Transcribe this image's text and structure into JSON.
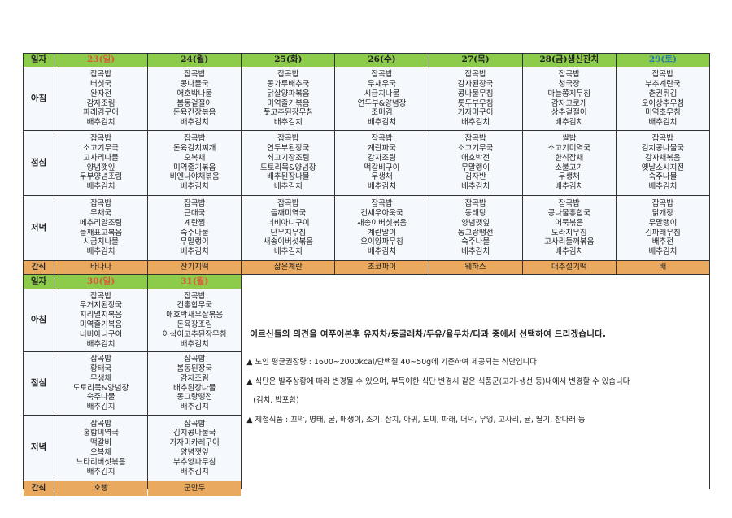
{
  "labels": {
    "date": "일자",
    "breakfast": "아침",
    "lunch": "점심",
    "dinner": "저녁",
    "snack": "간식"
  },
  "colors": {
    "header_bg": "#8dcc4a",
    "snack_bg": "#e9a95f",
    "sunday": "#d9593a",
    "saturday": "#1f7ab0",
    "weekday": "#222222"
  },
  "week1": [
    {
      "day": "23(일)",
      "color": "sunday",
      "breakfast": [
        "잡곡밥",
        "버섯국",
        "완자전",
        "감자조림",
        "파래김구이",
        "배추김치"
      ],
      "lunch": [
        "잡곡밥",
        "소고기무국",
        "고사리나물",
        "양념깻잎",
        "두부양념조림",
        "배추김치"
      ],
      "dinner": [
        "잡곡밥",
        "무채국",
        "메추리알조림",
        "들깨표고볶음",
        "시금치나물",
        "배추김치"
      ],
      "snack": "바나나"
    },
    {
      "day": "24(월)",
      "color": "weekday",
      "breakfast": [
        "잡곡밥",
        "콩나물국",
        "애호박나물",
        "봄동겉절이",
        "돈육간장볶음",
        "배추김치"
      ],
      "lunch": [
        "잡곡밥",
        "돈육김치찌개",
        "오복채",
        "미역줄기볶음",
        "비엔나야채볶음",
        "배추김치"
      ],
      "dinner": [
        "잡곡밥",
        "근대국",
        "계란찜",
        "숙주나물",
        "무말랭이",
        "배추김치"
      ],
      "snack": "잔기지떡"
    },
    {
      "day": "25(화)",
      "color": "weekday",
      "breakfast": [
        "잡곡밥",
        "콩가루배추국",
        "닭살양파볶음",
        "미역줄기볶음",
        "풋고추된장무침",
        "배추김치"
      ],
      "lunch": [
        "잡곡밥",
        "연두부된장국",
        "쇠고기장조림",
        "도토리묵&양념장",
        "배추된장나물",
        "배추김치"
      ],
      "dinner": [
        "잡곡밥",
        "들깨미역국",
        "너비아니구이",
        "단무지무침",
        "새송이버섯볶음",
        "배추김치"
      ],
      "snack": "삶은계란"
    },
    {
      "day": "26(수)",
      "color": "weekday",
      "breakfast": [
        "잡곡밥",
        "무새우국",
        "시금치나물",
        "연두부&양념장",
        "조미김",
        "배추김치"
      ],
      "lunch": [
        "잡곡밥",
        "계란파국",
        "감자조림",
        "떡갈비구이",
        "무생채",
        "배추김치"
      ],
      "dinner": [
        "잡곡밥",
        "건새우아욱국",
        "새송이버섯볶음",
        "계란말이",
        "오이양파무침",
        "배추김치"
      ],
      "snack": "초코파이"
    },
    {
      "day": "27(목)",
      "color": "weekday",
      "breakfast": [
        "잡곡밥",
        "감자된장국",
        "콩나물무침",
        "톳두부무침",
        "가자미구이",
        "배추김치"
      ],
      "lunch": [
        "잡곡밥",
        "소고기무국",
        "애호박전",
        "무말랭이",
        "김자반",
        "배추김치"
      ],
      "dinner": [
        "잡곡밥",
        "동태탕",
        "양념깻잎",
        "동그랑땡전",
        "숙주나물",
        "배추김치"
      ],
      "snack": "웨하스"
    },
    {
      "day": "28(금)생신잔치",
      "color": "weekday",
      "breakfast": [
        "잡곡밥",
        "청국장",
        "마늘쫑지무침",
        "감자고로케",
        "상추겉절이",
        "배추김치"
      ],
      "lunch": [
        "쌀밥",
        "소고기미역국",
        "한식잡채",
        "소불고기",
        "무생채",
        "배추김치"
      ],
      "dinner": [
        "잡곡밥",
        "콩나물홍합국",
        "어묵볶음",
        "도라지무침",
        "고사리들깨볶음",
        "배추김치"
      ],
      "snack": "대추설기떡"
    },
    {
      "day": "29(토)",
      "color": "saturday",
      "breakfast": [
        "잡곡밥",
        "부추계란국",
        "춘권튀김",
        "오이상추무침",
        "미역초무침",
        "배추김치"
      ],
      "lunch": [
        "잡곡밥",
        "김치콩나물국",
        "감자채볶음",
        "옛날소시지전",
        "숙주나물",
        "배추김치"
      ],
      "dinner": [
        "잡곡밥",
        "닭개장",
        "무말랭이",
        "김파래무침",
        "배추전",
        "배추김치"
      ],
      "snack": "배"
    }
  ],
  "week2": [
    {
      "day": "30(일)",
      "color": "sunday",
      "breakfast": [
        "잡곡밥",
        "우거지된장국",
        "지리멸치볶음",
        "미역줄기볶음",
        "너비아니구이",
        "배추김치"
      ],
      "lunch": [
        "잡곡밥",
        "황태국",
        "무생채",
        "도토리묵&양념장",
        "숙주나물",
        "배추김치"
      ],
      "dinner": [
        "잡곡밥",
        "홍합미역국",
        "떡갈비",
        "오복채",
        "느타리버섯볶음",
        "배추김치"
      ],
      "snack": "호빵"
    },
    {
      "day": "31(월)",
      "color": "sunday",
      "breakfast": [
        "잡곡밥",
        "건홍합무국",
        "애호박새우살볶음",
        "돈육장조림",
        "아삭이고추된장무침",
        "배추김치"
      ],
      "lunch": [
        "잡곡밥",
        "봄동된장국",
        "감자조림",
        "배추된장나물",
        "동그랑땡전",
        "배추김치"
      ],
      "dinner": [
        "잡곡밥",
        "김치콩나물국",
        "가자미카레구이",
        "양념깻잎",
        "부추양파무침",
        "배추김치"
      ],
      "snack": "군만두"
    }
  ],
  "notes": {
    "headline": "어르신들의 의견을 여쭈어본후 유자차/둥굴레차/두유/율무차/다과 중에서 선택하여 드리겠습니다.",
    "lines": [
      "▲ 노인 평균권장량 :  1600~2000kcal/단백질 40~50g에 기준하여 제공되는 식단입니다",
      "▲ 식단은 발주상황에 따라 변경될 수 있으며, 부득이한 식단 변경시 같은 식품군(고기-생선 등)내에서 변경할 수 있습니다",
      "(김치, 밥포함)",
      "▲  제철식품 : 꼬막, 명태, 굴, 매생이, 조기, 삼치, 아귀, 도미, 파래, 더덕, 우엉, 고사리, 귤, 딸기, 참다래 등"
    ]
  }
}
